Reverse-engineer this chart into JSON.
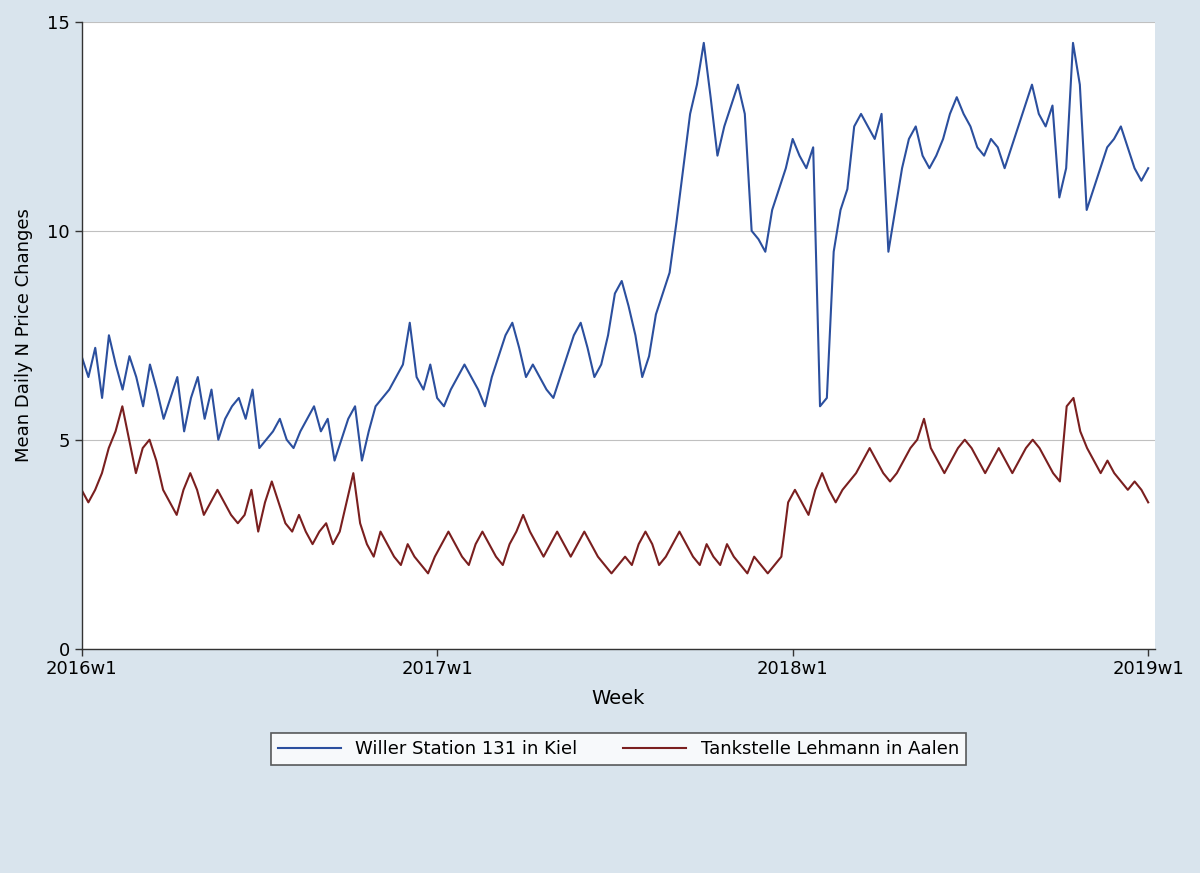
{
  "title": "",
  "xlabel": "Week",
  "ylabel": "Mean Daily N Price Changes",
  "ylim": [
    0,
    15
  ],
  "xlim": [
    0,
    157
  ],
  "xtick_positions": [
    0,
    52,
    104,
    156
  ],
  "xtick_labels": [
    "2016w1",
    "2017w1",
    "2018w1",
    "2019w1"
  ],
  "ytick_positions": [
    0,
    5,
    10,
    15
  ],
  "ytick_labels": [
    "0",
    "5",
    "10",
    "15"
  ],
  "bg_color": "#d9e4ed",
  "plot_bg_color": "#ffffff",
  "legend_labels": [
    "Willer Station 131 in Kiel",
    "Tankstelle Lehmann in Aalen"
  ],
  "line1_color": "#2b4f9e",
  "line2_color": "#7a1f1f",
  "line_width": 1.5,
  "blue_series": [
    7.0,
    6.5,
    7.2,
    6.0,
    7.5,
    6.8,
    6.2,
    7.0,
    6.5,
    5.8,
    6.8,
    6.2,
    5.5,
    6.0,
    6.5,
    5.2,
    6.0,
    6.5,
    5.5,
    6.2,
    5.0,
    5.5,
    5.8,
    6.0,
    5.5,
    6.2,
    4.8,
    5.0,
    5.2,
    5.5,
    5.0,
    4.8,
    5.2,
    5.5,
    5.8,
    5.2,
    5.5,
    4.5,
    5.0,
    5.5,
    5.8,
    4.5,
    5.2,
    5.8,
    6.0,
    6.2,
    6.5,
    6.8,
    7.8,
    6.5,
    6.2,
    6.8,
    6.0,
    5.8,
    6.2,
    6.5,
    6.8,
    6.5,
    6.2,
    5.8,
    6.5,
    7.0,
    7.5,
    7.8,
    7.2,
    6.5,
    6.8,
    6.5,
    6.2,
    6.0,
    6.5,
    7.0,
    7.5,
    7.8,
    7.2,
    6.5,
    6.8,
    7.5,
    8.5,
    8.8,
    8.2,
    7.5,
    6.5,
    7.0,
    8.0,
    8.5,
    9.0,
    10.2,
    11.5,
    12.8,
    13.5,
    14.5,
    13.2,
    11.8,
    12.5,
    13.0,
    13.5,
    12.8,
    10.0,
    9.8,
    9.5,
    10.5,
    11.0,
    11.5,
    12.2,
    11.8,
    11.5,
    12.0,
    5.8,
    6.0,
    9.5,
    10.5,
    11.0,
    12.5,
    12.8,
    12.5,
    12.2,
    12.8,
    9.5,
    10.5,
    11.5,
    12.2,
    12.5,
    11.8,
    11.5,
    11.8,
    12.2,
    12.8,
    13.2,
    12.8,
    12.5,
    12.0,
    11.8,
    12.2,
    12.0,
    11.5,
    12.0,
    12.5,
    13.0,
    13.5,
    12.8,
    12.5,
    13.0,
    10.8,
    11.5,
    14.5,
    13.5,
    10.5,
    11.0,
    11.5,
    12.0,
    12.2,
    12.5,
    12.0,
    11.5,
    11.2,
    11.5
  ],
  "red_series": [
    3.8,
    3.5,
    3.8,
    4.2,
    4.8,
    5.2,
    5.8,
    5.0,
    4.2,
    4.8,
    5.0,
    4.5,
    3.8,
    3.5,
    3.2,
    3.8,
    4.2,
    3.8,
    3.2,
    3.5,
    3.8,
    3.5,
    3.2,
    3.0,
    3.2,
    3.8,
    2.8,
    3.5,
    4.0,
    3.5,
    3.0,
    2.8,
    3.2,
    2.8,
    2.5,
    2.8,
    3.0,
    2.5,
    2.8,
    3.5,
    4.2,
    3.0,
    2.5,
    2.2,
    2.8,
    2.5,
    2.2,
    2.0,
    2.5,
    2.2,
    2.0,
    1.8,
    2.2,
    2.5,
    2.8,
    2.5,
    2.2,
    2.0,
    2.5,
    2.8,
    2.5,
    2.2,
    2.0,
    2.5,
    2.8,
    3.2,
    2.8,
    2.5,
    2.2,
    2.5,
    2.8,
    2.5,
    2.2,
    2.5,
    2.8,
    2.5,
    2.2,
    2.0,
    1.8,
    2.0,
    2.2,
    2.0,
    2.5,
    2.8,
    2.5,
    2.0,
    2.2,
    2.5,
    2.8,
    2.5,
    2.2,
    2.0,
    2.5,
    2.2,
    2.0,
    2.5,
    2.2,
    2.0,
    1.8,
    2.2,
    2.0,
    1.8,
    2.0,
    2.2,
    3.5,
    3.8,
    3.5,
    3.2,
    3.8,
    4.2,
    3.8,
    3.5,
    3.8,
    4.0,
    4.2,
    4.5,
    4.8,
    4.5,
    4.2,
    4.0,
    4.2,
    4.5,
    4.8,
    5.0,
    5.5,
    4.8,
    4.5,
    4.2,
    4.5,
    4.8,
    5.0,
    4.8,
    4.5,
    4.2,
    4.5,
    4.8,
    4.5,
    4.2,
    4.5,
    4.8,
    5.0,
    4.8,
    4.5,
    4.2,
    4.0,
    5.8,
    6.0,
    5.2,
    4.8,
    4.5,
    4.2,
    4.5,
    4.2,
    4.0,
    3.8,
    4.0,
    3.8,
    3.5
  ]
}
